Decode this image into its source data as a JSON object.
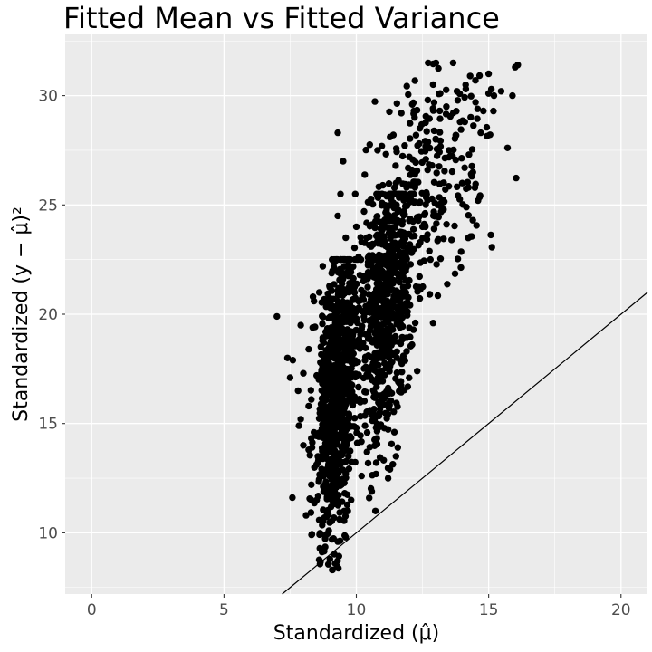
{
  "chart_data": {
    "type": "scatter",
    "title": "Fitted Mean vs Fitted Variance",
    "xlabel": "Standardized (μ̂)",
    "ylabel": "Standardized (y − μ̂)²",
    "xlim": [
      -1.0,
      21.0
    ],
    "ylim": [
      7.2,
      32.8
    ],
    "x_ticks": [
      0,
      5,
      10,
      15,
      20
    ],
    "y_ticks": [
      10,
      15,
      20,
      25,
      30
    ],
    "grid": true,
    "legend": "none",
    "colors": {
      "panel": "#ebebeb",
      "grid": "#ffffff",
      "points": "#000000",
      "line": "#000000"
    },
    "reference_line": {
      "slope": 1,
      "intercept": 0
    },
    "clusters": [
      {
        "x_center": 9.2,
        "x_spread": 0.35,
        "y_min": 8.3,
        "y_max": 22.5,
        "y_center": 16.5,
        "n": 900
      },
      {
        "x_center": 11.0,
        "x_spread": 0.5,
        "y_min": 11.0,
        "y_max": 25.5,
        "y_center": 20.5,
        "n": 700
      },
      {
        "x_center": 12.8,
        "x_spread": 1.1,
        "y_min": 20.0,
        "y_max": 31.5,
        "y_center": 26.0,
        "n": 260
      }
    ],
    "points": [
      [
        7.0,
        19.9
      ],
      [
        7.4,
        18.0
      ],
      [
        7.5,
        17.1
      ],
      [
        7.6,
        17.9
      ],
      [
        7.8,
        16.5
      ],
      [
        7.9,
        15.2
      ],
      [
        7.9,
        19.5
      ],
      [
        8.0,
        14.0
      ],
      [
        8.0,
        17.3
      ],
      [
        8.1,
        10.8
      ],
      [
        8.2,
        13.8
      ],
      [
        8.2,
        15.8
      ],
      [
        8.2,
        18.4
      ],
      [
        8.3,
        12.2
      ],
      [
        8.3,
        16.1
      ],
      [
        8.4,
        14.6
      ],
      [
        8.4,
        20.6
      ],
      [
        8.5,
        11.5
      ],
      [
        8.6,
        21.0
      ],
      [
        9.0,
        8.8
      ],
      [
        9.1,
        8.3
      ],
      [
        9.2,
        8.6
      ],
      [
        9.3,
        9.6
      ],
      [
        9.3,
        28.3
      ],
      [
        9.3,
        24.5
      ],
      [
        9.4,
        25.5
      ],
      [
        9.5,
        27.0
      ],
      [
        9.6,
        9.8
      ],
      [
        9.6,
        23.5
      ],
      [
        9.7,
        21.2
      ],
      [
        9.7,
        13.5
      ],
      [
        9.7,
        17.0
      ],
      [
        9.8,
        11.5
      ],
      [
        9.8,
        16.4
      ],
      [
        9.9,
        19.2
      ],
      [
        10.0,
        24.0
      ],
      [
        10.0,
        14.8
      ],
      [
        10.2,
        12.6
      ],
      [
        10.2,
        23.3
      ],
      [
        10.3,
        21.6
      ],
      [
        10.4,
        13.7
      ],
      [
        10.6,
        24.1
      ],
      [
        10.8,
        27.5
      ],
      [
        11.0,
        25.9
      ],
      [
        11.2,
        12.5
      ],
      [
        11.4,
        28.2
      ],
      [
        11.5,
        26.0
      ],
      [
        11.5,
        13.5
      ],
      [
        11.7,
        29.2
      ],
      [
        11.9,
        25.8
      ],
      [
        11.9,
        18.3
      ],
      [
        12.0,
        27.2
      ],
      [
        12.2,
        29.0
      ],
      [
        12.3,
        17.4
      ],
      [
        12.4,
        28.5
      ],
      [
        12.5,
        24.0
      ],
      [
        12.7,
        29.8
      ],
      [
        12.8,
        22.5
      ],
      [
        12.9,
        19.6
      ],
      [
        13.0,
        28.0
      ],
      [
        13.2,
        25.0
      ],
      [
        13.4,
        29.5
      ],
      [
        13.5,
        27.5
      ],
      [
        13.6,
        23.4
      ],
      [
        13.8,
        30.2
      ],
      [
        14.0,
        26.0
      ],
      [
        14.1,
        28.8
      ],
      [
        14.3,
        30.9
      ],
      [
        14.4,
        24.3
      ],
      [
        14.5,
        30.7
      ],
      [
        14.6,
        25.2
      ],
      [
        14.7,
        28.3
      ],
      [
        14.8,
        29.3
      ],
      [
        15.0,
        30.1
      ],
      [
        15.0,
        31.0
      ],
      [
        15.1,
        30.3
      ],
      [
        15.2,
        30.0
      ],
      [
        15.9,
        30.0
      ],
      [
        16.1,
        31.4
      ],
      [
        16.0,
        31.3
      ]
    ]
  }
}
